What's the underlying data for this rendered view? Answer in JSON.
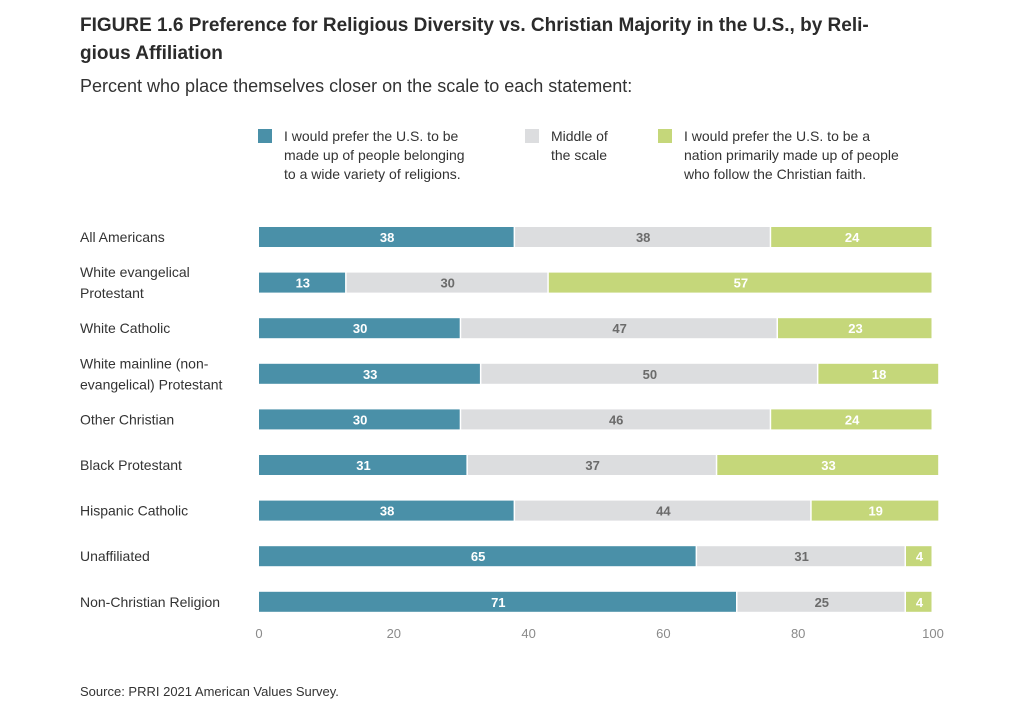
{
  "chart_data": {
    "type": "bar",
    "orientation": "horizontal",
    "stacked": true,
    "title": "FIGURE 1.6 Preference for Religious Diversity vs. Christian Majority in the U.S., by Religious Affiliation",
    "title_display": "FIGURE 1.6 Preference for Religious Diversity vs. Christian Majority in the U.S., by Reli-\ngious Affiliation",
    "subtitle": "Percent who place themselves closer on the scale to each statement:",
    "source": "Source: PRRI 2021 American Values Survey.",
    "categories": [
      "All Americans",
      "White evangelical Protestant",
      "White Catholic",
      "White mainline (non-evangelical) Protestant",
      "Other Christian",
      "Black Protestant",
      "Hispanic Catholic",
      "Unaffiliated",
      "Non-Christian Religion"
    ],
    "category_labels_display": [
      [
        "All Americans"
      ],
      [
        "White evangelical",
        "Protestant"
      ],
      [
        "White Catholic"
      ],
      [
        "White mainline (non-",
        "evangelical) Protestant"
      ],
      [
        "Other Christian"
      ],
      [
        "Black Protestant"
      ],
      [
        "Hispanic Catholic"
      ],
      [
        "Unaffiliated"
      ],
      [
        "Non-Christian Religion"
      ]
    ],
    "series": [
      {
        "name": "I would prefer the U.S. to be made up of people belonging to a wide variety of religions.",
        "legend_display": "I would prefer the U.S. to be\nmade up of people belonging\nto a wide variety of religions.",
        "color": "#4a90a8",
        "label_color": "#ffffff",
        "values": [
          38,
          13,
          30,
          33,
          30,
          31,
          38,
          65,
          71
        ]
      },
      {
        "name": "Middle of the scale",
        "legend_display": "Middle of\nthe scale",
        "color": "#dcdddf",
        "label_color": "#6b6b6b",
        "values": [
          38,
          30,
          47,
          50,
          46,
          37,
          44,
          31,
          25
        ]
      },
      {
        "name": "I would prefer the U.S. to be a nation primarily made up of people who follow the Christian faith.",
        "legend_display": "I would prefer the U.S. to be a\nnation primarily made up of people\nwho follow the Christian faith.",
        "color": "#c5d77a",
        "label_color": "#ffffff",
        "values": [
          24,
          57,
          23,
          18,
          24,
          33,
          19,
          4,
          4
        ]
      }
    ],
    "xlim": [
      0,
      100
    ],
    "xticks": [
      0,
      20,
      40,
      60,
      80,
      100
    ],
    "grid": false,
    "legend_position": "top"
  }
}
